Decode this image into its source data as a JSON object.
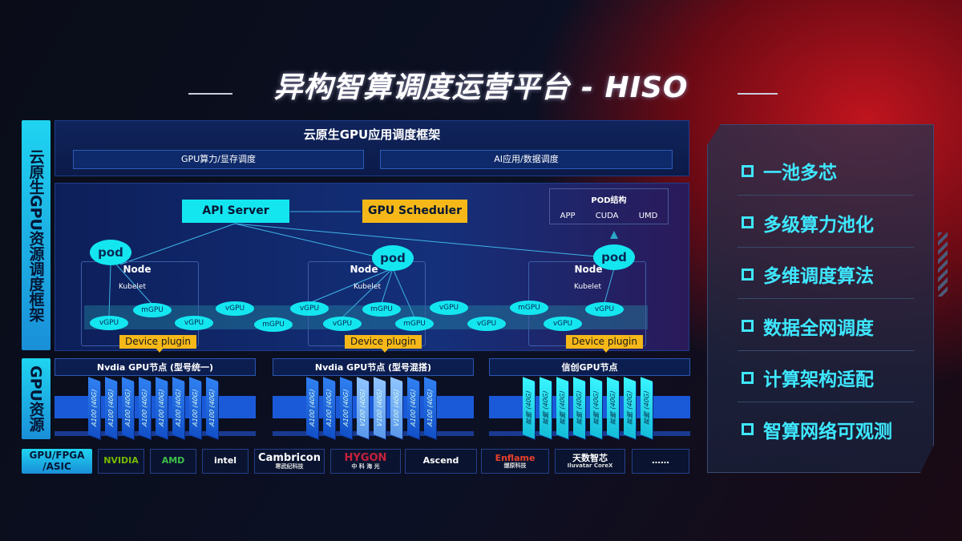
{
  "title": "异构智算调度运营平台 - HISO",
  "left_labels": {
    "framework": "云原生GPU资源调度框架",
    "gpu": "GPU资源",
    "chip_types": "GPU/FPGA /ASIC"
  },
  "framework": {
    "title": "云原生GPU应用调度框架",
    "bars": [
      "GPU算力/显存调度",
      "AI应用/数据调度"
    ],
    "api_server": "API Server",
    "gpu_scheduler": "GPU Scheduler",
    "pod_structure": {
      "title": "POD结构",
      "items": [
        "APP",
        "CUDA",
        "UMD"
      ]
    },
    "node_label": "Node",
    "kubelet_label": "Kubelet",
    "pod_label": "pod",
    "device_plugin": "Device plugin",
    "units": [
      "mGPU",
      "vGPU",
      "vGPU",
      "vGPU",
      "mGPU",
      "vGPU",
      "mGPU",
      "vGPU",
      "mGPU",
      "vGPU",
      "vGPU",
      "mGPU",
      "vGPU",
      "vGPU"
    ]
  },
  "gpu_nodes": [
    {
      "title": "Nvdia GPU节点 (型号统一)",
      "chips": [
        "A100 (40G)",
        "A100 (40G)",
        "A100 (40G)",
        "A100 (40G)",
        "A100 (40G)",
        "A100 (40G)",
        "A100 (40G)",
        "A100 (40G)"
      ]
    },
    {
      "title": "Nvdia GPU节点 (型号混搭)",
      "chips": [
        "A100 (40G)",
        "A100 (40G)",
        "A100 (40G)",
        "V100 (40G)",
        "V100 (40G)",
        "V100 (40G)",
        "A100 (40G)",
        "A100 (40G)"
      ]
    },
    {
      "title": "信创GPU节点",
      "chips": [
        "昇腾 (40G)",
        "昇腾 (40G)",
        "昇腾 (40G)",
        "昇腾 (40G)",
        "昇腾 (40G)",
        "昇腾 (40G)",
        "昇腾 (40G)",
        "昇腾 (40G)"
      ]
    }
  ],
  "vendors": [
    {
      "name": "NVIDIA",
      "sub": "",
      "color": "#76b900"
    },
    {
      "name": "AMD",
      "sub": "",
      "color": "#3ec04a"
    },
    {
      "name": "intel",
      "sub": "",
      "color": "#ffffff"
    },
    {
      "name": "Cambricon",
      "sub": "寒武纪科技",
      "color": "#ffffff"
    },
    {
      "name": "HYGON",
      "sub": "中 科 海 光",
      "color": "#c8203a"
    },
    {
      "name": "Ascend",
      "sub": "",
      "color": "#ffffff"
    },
    {
      "name": "Enflame",
      "sub": "燧原科技",
      "color": "#e8402a"
    },
    {
      "name": "天数智芯",
      "sub": "Iluvatar CoreX",
      "color": "#ffffff"
    },
    {
      "name": "……",
      "sub": "",
      "color": "#ffffff"
    }
  ],
  "features": [
    "一池多芯",
    "多级算力池化",
    "多维调度算法",
    "数据全网调度",
    "计算架构适配",
    "智算网络可观测"
  ],
  "colors": {
    "accent_cyan": "#14e6f0",
    "accent_yellow": "#f5b818",
    "brand_red": "#c0141e"
  }
}
